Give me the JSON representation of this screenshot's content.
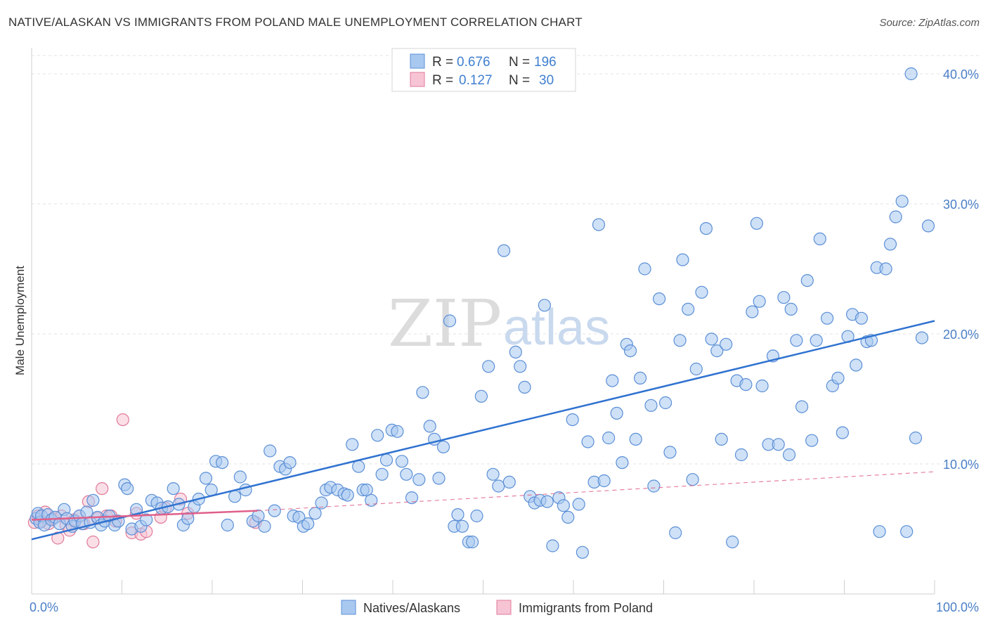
{
  "title": "NATIVE/ALASKAN VS IMMIGRANTS FROM POLAND MALE UNEMPLOYMENT CORRELATION CHART",
  "source": "Source: ZipAtlas.com",
  "watermark": {
    "part1": "ZIP",
    "part2": "atlas"
  },
  "colors": {
    "blue_fill": "#a8c8f0",
    "blue_stroke": "#5b8fd6",
    "blue_line": "#2f72d0",
    "pink_fill": "#f7c4d4",
    "pink_stroke": "#e07a9a",
    "pink_line": "#e0608a",
    "grid": "#e3e3e3",
    "axis_text": "#4a7fc7"
  },
  "legend": [
    {
      "r_label": "R =",
      "r_value": "0.676",
      "n_label": "N =",
      "n_value": "196"
    },
    {
      "r_label": "R =",
      "r_value": "0.127",
      "n_label": "N =",
      "n_value": "30"
    }
  ],
  "bottom_legend": [
    "Natives/Alaskans",
    "Immigrants from Poland"
  ],
  "chart_data": {
    "type": "scatter",
    "ylabel": "Male Unemployment",
    "xlabel": "",
    "xlim": [
      0,
      100
    ],
    "ylim": [
      0,
      42
    ],
    "x_tick_labels": [
      {
        "value": 0,
        "label": "0.0%"
      },
      {
        "value": 100,
        "label": "100.0%"
      }
    ],
    "y_tick_labels": [
      {
        "value": 10,
        "label": "10.0%"
      },
      {
        "value": 20,
        "label": "20.0%"
      },
      {
        "value": 30,
        "label": "30.0%"
      },
      {
        "value": 40,
        "label": "40.0%"
      }
    ],
    "series": [
      {
        "name": "Natives/Alaskans",
        "R": 0.676,
        "N": 196,
        "trend": {
          "x": [
            0,
            100
          ],
          "y": [
            4.2,
            21.0
          ]
        },
        "points": [
          [
            0.5,
            5.8
          ],
          [
            0.7,
            6.2
          ],
          [
            0.9,
            5.5
          ],
          [
            1.1,
            6.0
          ],
          [
            1.4,
            5.3
          ],
          [
            1.8,
            6.1
          ],
          [
            2.2,
            5.7
          ],
          [
            2.6,
            5.9
          ],
          [
            3.1,
            5.4
          ],
          [
            3.6,
            6.5
          ],
          [
            3.9,
            5.8
          ],
          [
            4.5,
            5.2
          ],
          [
            4.8,
            5.6
          ],
          [
            5.3,
            6.0
          ],
          [
            5.6,
            5.4
          ],
          [
            6.1,
            6.3
          ],
          [
            6.5,
            5.5
          ],
          [
            6.8,
            7.2
          ],
          [
            7.3,
            5.9
          ],
          [
            7.7,
            5.3
          ],
          [
            8.1,
            5.6
          ],
          [
            8.6,
            6.0
          ],
          [
            9.2,
            5.3
          ],
          [
            9.6,
            5.6
          ],
          [
            10.3,
            8.4
          ],
          [
            10.6,
            8.1
          ],
          [
            11.1,
            5.0
          ],
          [
            11.6,
            6.5
          ],
          [
            12.1,
            5.2
          ],
          [
            12.7,
            5.7
          ],
          [
            13.3,
            7.2
          ],
          [
            13.9,
            7.0
          ],
          [
            14.4,
            6.6
          ],
          [
            15.1,
            6.7
          ],
          [
            15.7,
            8.1
          ],
          [
            16.3,
            6.9
          ],
          [
            16.8,
            5.3
          ],
          [
            17.3,
            5.8
          ],
          [
            18.0,
            6.7
          ],
          [
            18.5,
            7.3
          ],
          [
            19.3,
            8.9
          ],
          [
            19.9,
            8.0
          ],
          [
            20.4,
            10.2
          ],
          [
            21.1,
            10.1
          ],
          [
            21.7,
            5.3
          ],
          [
            22.5,
            7.5
          ],
          [
            23.1,
            9.0
          ],
          [
            23.7,
            8.0
          ],
          [
            24.5,
            5.6
          ],
          [
            25.1,
            6.0
          ],
          [
            25.8,
            5.2
          ],
          [
            26.4,
            11.0
          ],
          [
            26.9,
            6.4
          ],
          [
            27.5,
            9.8
          ],
          [
            28.1,
            9.6
          ],
          [
            28.6,
            10.1
          ],
          [
            29.0,
            6.0
          ],
          [
            29.6,
            5.9
          ],
          [
            30.1,
            5.2
          ],
          [
            30.6,
            5.4
          ],
          [
            31.4,
            6.2
          ],
          [
            32.1,
            7.0
          ],
          [
            32.6,
            8.0
          ],
          [
            33.1,
            8.2
          ],
          [
            33.9,
            8.0
          ],
          [
            34.6,
            7.7
          ],
          [
            35.0,
            7.6
          ],
          [
            35.5,
            11.5
          ],
          [
            36.2,
            9.8
          ],
          [
            36.7,
            8.0
          ],
          [
            37.1,
            8.0
          ],
          [
            37.6,
            7.2
          ],
          [
            38.3,
            12.2
          ],
          [
            38.8,
            9.2
          ],
          [
            39.3,
            10.3
          ],
          [
            39.9,
            12.6
          ],
          [
            40.5,
            12.5
          ],
          [
            41.0,
            10.2
          ],
          [
            41.5,
            9.2
          ],
          [
            42.1,
            7.4
          ],
          [
            42.9,
            8.8
          ],
          [
            43.3,
            15.5
          ],
          [
            44.1,
            12.9
          ],
          [
            44.6,
            11.9
          ],
          [
            45.1,
            8.9
          ],
          [
            45.6,
            11.3
          ],
          [
            46.3,
            21.0
          ],
          [
            46.8,
            5.2
          ],
          [
            47.2,
            6.1
          ],
          [
            47.7,
            5.2
          ],
          [
            48.4,
            4.0
          ],
          [
            48.8,
            4.0
          ],
          [
            49.3,
            6.0
          ],
          [
            49.8,
            15.2
          ],
          [
            50.6,
            17.5
          ],
          [
            51.1,
            9.2
          ],
          [
            51.7,
            8.3
          ],
          [
            52.3,
            26.4
          ],
          [
            52.9,
            8.6
          ],
          [
            53.6,
            18.6
          ],
          [
            54.1,
            17.5
          ],
          [
            54.6,
            15.9
          ],
          [
            55.2,
            7.5
          ],
          [
            55.7,
            7.0
          ],
          [
            56.3,
            7.2
          ],
          [
            56.8,
            22.2
          ],
          [
            57.1,
            7.1
          ],
          [
            57.7,
            3.7
          ],
          [
            58.4,
            7.4
          ],
          [
            58.9,
            6.8
          ],
          [
            59.4,
            5.9
          ],
          [
            59.9,
            13.4
          ],
          [
            60.6,
            6.9
          ],
          [
            61.0,
            3.2
          ],
          [
            61.6,
            11.7
          ],
          [
            62.3,
            8.6
          ],
          [
            62.8,
            28.4
          ],
          [
            63.4,
            8.7
          ],
          [
            63.9,
            12.0
          ],
          [
            64.3,
            16.4
          ],
          [
            64.8,
            13.9
          ],
          [
            65.4,
            10.1
          ],
          [
            65.9,
            19.2
          ],
          [
            66.3,
            18.7
          ],
          [
            66.9,
            11.9
          ],
          [
            67.4,
            16.6
          ],
          [
            67.9,
            25.0
          ],
          [
            68.6,
            14.5
          ],
          [
            68.9,
            8.3
          ],
          [
            69.5,
            22.7
          ],
          [
            70.2,
            14.7
          ],
          [
            70.7,
            10.9
          ],
          [
            71.3,
            4.7
          ],
          [
            71.8,
            19.5
          ],
          [
            72.1,
            25.7
          ],
          [
            72.7,
            21.9
          ],
          [
            73.2,
            8.8
          ],
          [
            73.6,
            17.3
          ],
          [
            74.2,
            23.2
          ],
          [
            74.7,
            28.1
          ],
          [
            75.3,
            19.6
          ],
          [
            75.9,
            18.7
          ],
          [
            76.4,
            11.9
          ],
          [
            76.9,
            19.2
          ],
          [
            77.6,
            4.0
          ],
          [
            78.1,
            16.4
          ],
          [
            78.6,
            10.7
          ],
          [
            79.1,
            16.1
          ],
          [
            79.8,
            21.7
          ],
          [
            80.3,
            28.5
          ],
          [
            80.6,
            22.5
          ],
          [
            80.9,
            16.0
          ],
          [
            81.6,
            11.5
          ],
          [
            82.1,
            18.3
          ],
          [
            82.7,
            11.5
          ],
          [
            83.3,
            22.8
          ],
          [
            83.9,
            10.7
          ],
          [
            84.1,
            21.9
          ],
          [
            84.7,
            19.5
          ],
          [
            85.3,
            14.4
          ],
          [
            85.9,
            24.1
          ],
          [
            86.4,
            11.8
          ],
          [
            86.9,
            19.5
          ],
          [
            87.3,
            27.3
          ],
          [
            88.1,
            21.2
          ],
          [
            88.7,
            16.0
          ],
          [
            89.3,
            16.6
          ],
          [
            89.8,
            12.4
          ],
          [
            90.4,
            19.8
          ],
          [
            90.9,
            21.5
          ],
          [
            91.3,
            17.6
          ],
          [
            91.9,
            21.2
          ],
          [
            92.5,
            19.4
          ],
          [
            93.0,
            19.5
          ],
          [
            93.6,
            25.1
          ],
          [
            93.9,
            4.8
          ],
          [
            94.6,
            25.0
          ],
          [
            95.1,
            26.9
          ],
          [
            95.7,
            29.0
          ],
          [
            96.4,
            30.2
          ],
          [
            96.9,
            4.8
          ],
          [
            97.4,
            40.0
          ],
          [
            97.9,
            12.0
          ],
          [
            98.6,
            19.7
          ],
          [
            99.3,
            28.3
          ]
        ]
      },
      {
        "name": "Immigrants from Poland",
        "R": 0.127,
        "N": 30,
        "trend": {
          "x": [
            0,
            25
          ],
          "y": [
            5.7,
            6.4
          ]
        },
        "trend_dashed": {
          "x": [
            25,
            100
          ],
          "y": [
            6.4,
            9.4
          ]
        },
        "points": [
          [
            0.3,
            5.5
          ],
          [
            0.7,
            6.0
          ],
          [
            1.1,
            5.6
          ],
          [
            1.5,
            6.3
          ],
          [
            1.9,
            5.4
          ],
          [
            2.4,
            5.8
          ],
          [
            2.9,
            4.3
          ],
          [
            3.3,
            6.0
          ],
          [
            3.8,
            5.3
          ],
          [
            4.2,
            4.9
          ],
          [
            4.7,
            5.7
          ],
          [
            5.3,
            6.0
          ],
          [
            5.8,
            5.4
          ],
          [
            6.3,
            7.1
          ],
          [
            6.8,
            4.0
          ],
          [
            7.3,
            5.8
          ],
          [
            7.8,
            8.1
          ],
          [
            8.3,
            6.0
          ],
          [
            8.8,
            6.0
          ],
          [
            9.3,
            5.6
          ],
          [
            10.1,
            13.4
          ],
          [
            11.1,
            4.7
          ],
          [
            11.6,
            6.2
          ],
          [
            12.1,
            4.6
          ],
          [
            12.7,
            4.8
          ],
          [
            14.3,
            5.9
          ],
          [
            14.8,
            6.6
          ],
          [
            16.5,
            7.3
          ],
          [
            17.3,
            6.2
          ],
          [
            24.8,
            5.5
          ]
        ]
      }
    ]
  }
}
